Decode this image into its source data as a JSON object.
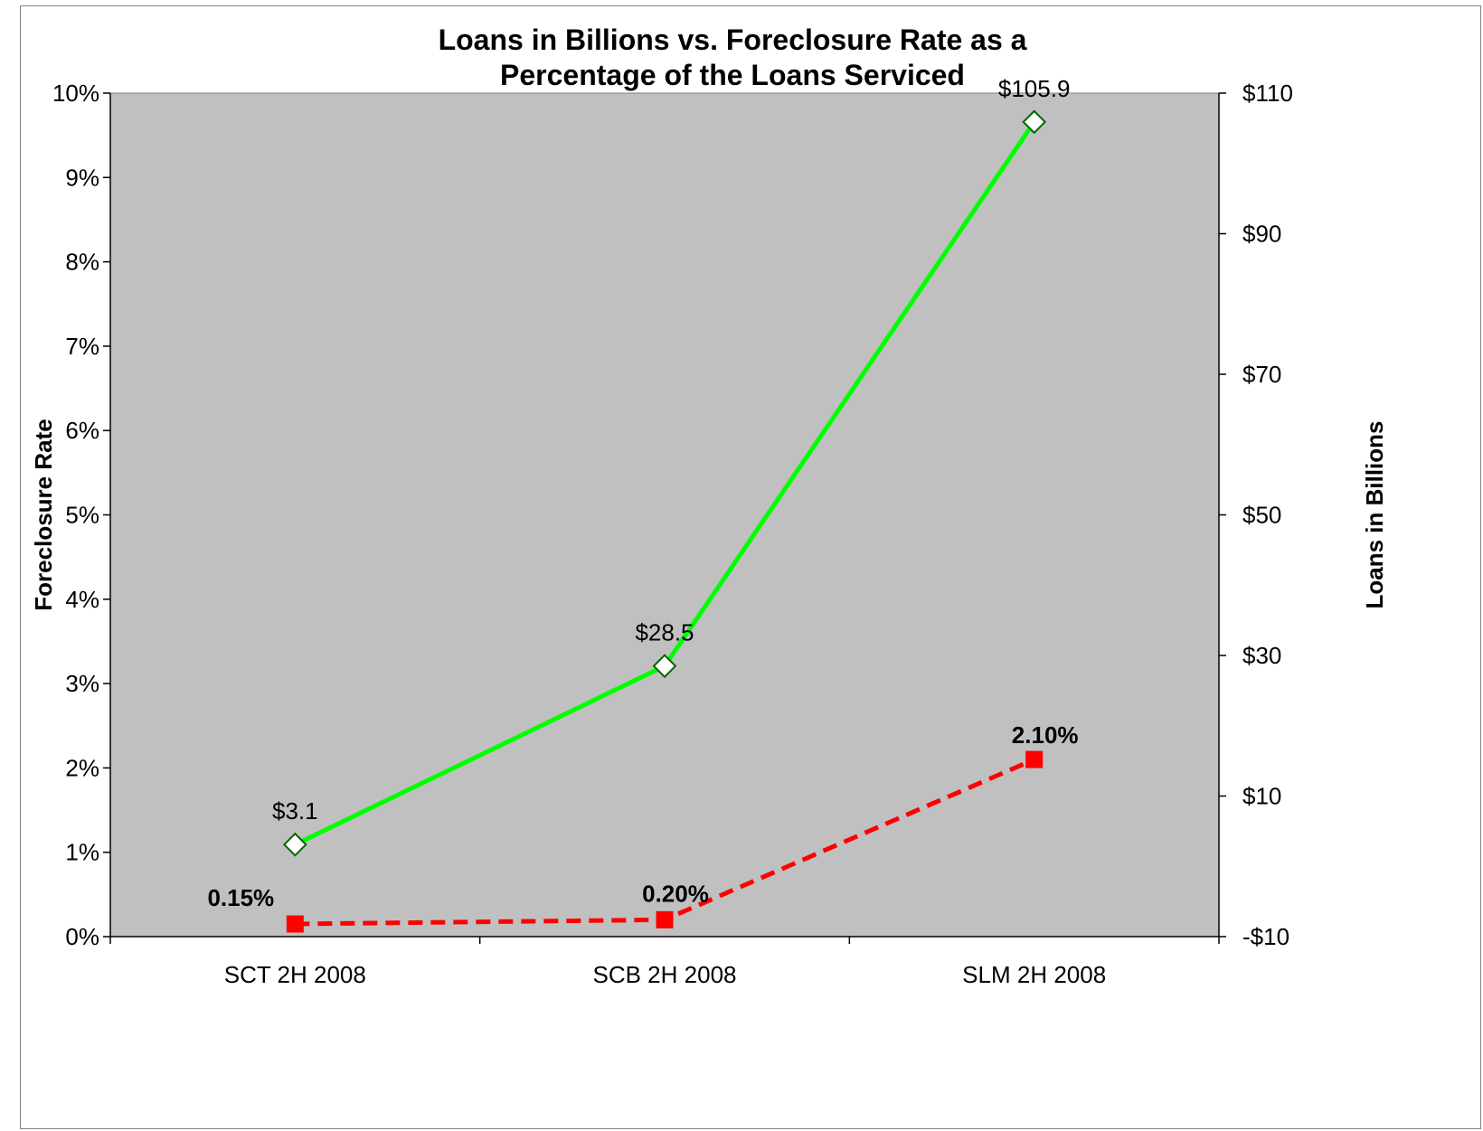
{
  "chart_data": {
    "type": "line",
    "title_lines": [
      "Loans in Billions vs. Foreclosure Rate as a",
      "Percentage of the Loans  Serviced"
    ],
    "categories": [
      "SCT 2H 2008",
      "SCB 2H 2008",
      "SLM 2H 2008"
    ],
    "ylabel_left": "Foreclosure Rate",
    "ylabel_right": "Loans in Billions",
    "y_left": {
      "min": 0,
      "max": 0.1,
      "ticks": [
        0,
        0.01,
        0.02,
        0.03,
        0.04,
        0.05,
        0.06,
        0.07,
        0.08,
        0.09,
        0.1
      ],
      "tick_labels": [
        "0%",
        "1%",
        "2%",
        "3%",
        "4%",
        "5%",
        "6%",
        "7%",
        "8%",
        "9%",
        "10%"
      ]
    },
    "y_right": {
      "min": -10,
      "max": 110,
      "ticks": [
        -10,
        10,
        30,
        50,
        70,
        90,
        110
      ],
      "tick_labels": [
        "-$10",
        "$10",
        "$30",
        "$50",
        "$70",
        "$90",
        "$110"
      ]
    },
    "series": [
      {
        "axis": "right",
        "values": [
          3.1,
          28.5,
          105.9
        ],
        "labels": [
          "$3.1",
          "$28.5",
          "$105.9"
        ],
        "color": "#00ff00",
        "line_style": "solid",
        "marker": "diamond",
        "marker_fill": "#ffffff",
        "marker_stroke": "#006400"
      },
      {
        "axis": "left",
        "values": [
          0.0015,
          0.002,
          0.021
        ],
        "labels": [
          "0.15%",
          "0.20%",
          "2.10%"
        ],
        "color": "#ff0000",
        "line_style": "dashed",
        "marker": "square",
        "marker_fill": "#ff0000",
        "marker_stroke": "#ff0000"
      }
    ],
    "plot_background": "#c0c0c0",
    "grid": false,
    "legend": "none"
  }
}
